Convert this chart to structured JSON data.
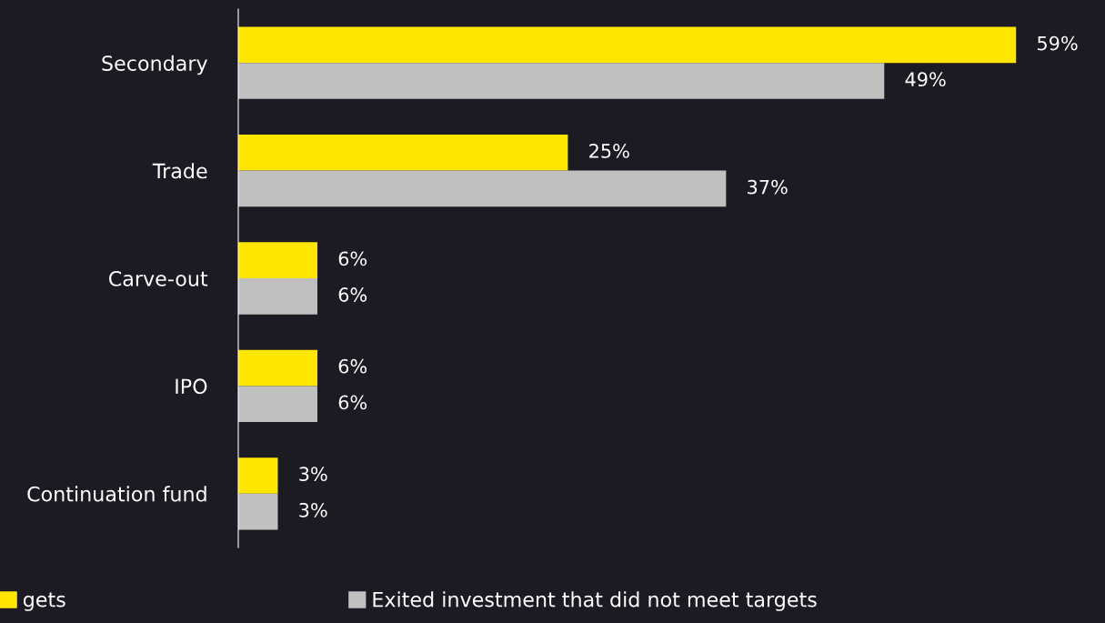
{
  "chart_data": {
    "type": "bar",
    "orientation": "horizontal",
    "categories": [
      "Secondary",
      "Trade",
      "Carve-out",
      "IPO",
      "Continuation fund"
    ],
    "series": [
      {
        "name": "gets",
        "color": "#ffe600",
        "values": [
          59,
          25,
          6,
          6,
          3
        ],
        "value_labels": [
          "59%",
          "25%",
          "6%",
          "6%",
          "3%"
        ]
      },
      {
        "name": "Exited investment that did not meet targets",
        "color": "#c0c0c0",
        "values": [
          49,
          37,
          6,
          6,
          3
        ],
        "value_labels": [
          "49%",
          "37%",
          "6%",
          "6%",
          "3%"
        ]
      }
    ],
    "tick_labels": "y",
    "grid": false,
    "legend": "bottom"
  }
}
